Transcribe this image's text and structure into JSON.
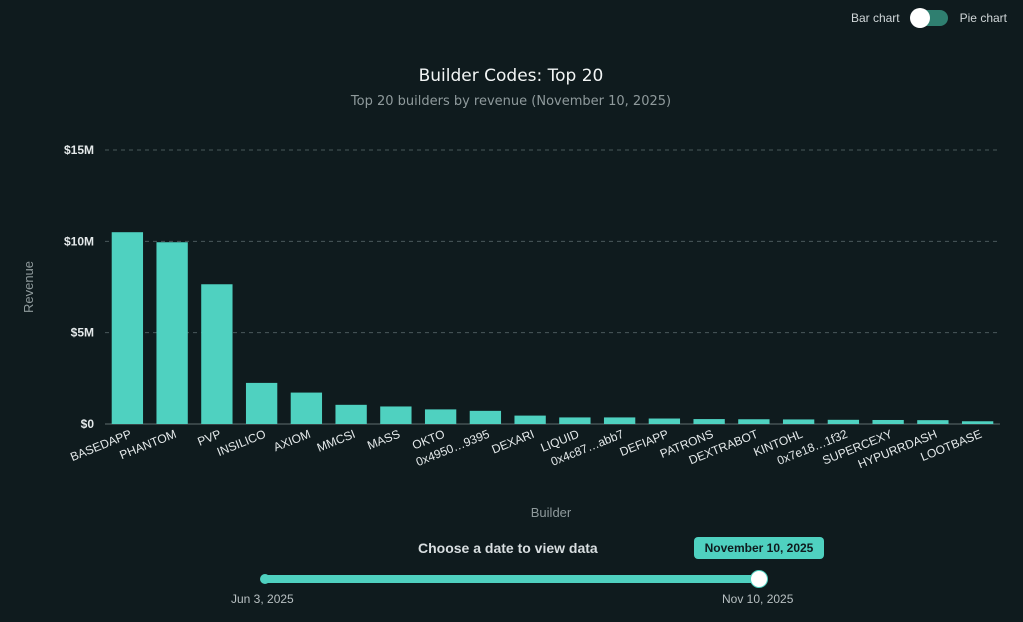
{
  "toggle": {
    "left_label": "Bar chart",
    "right_label": "Pie chart"
  },
  "chart_data": {
    "type": "bar",
    "title": "Builder Codes: Top 20",
    "subtitle": "Top 20 builders by revenue (November 10, 2025)",
    "xlabel": "Builder",
    "ylabel": "Revenue",
    "ylim": [
      0,
      15000000
    ],
    "yticks": [
      0,
      5000000,
      10000000,
      15000000
    ],
    "ytick_labels": [
      "$0",
      "$5M",
      "$10M",
      "$15M"
    ],
    "grid": true,
    "bar_color": "#4fd1c0",
    "categories": [
      "BASEDAPP",
      "PHANTOM",
      "PVP",
      "INSILICO",
      "AXIOM",
      "MMCSI",
      "MASS",
      "OKTO",
      "0x4950…9395",
      "DEXARI",
      "LIQUID",
      "0x4c87…abb7",
      "DEFIAPP",
      "PATRONS",
      "DEXTRABOT",
      "KINTOHL",
      "0x7e18…1f32",
      "SUPERCEXY",
      "HYPURRDASH",
      "LOOTBASE"
    ],
    "values": [
      10500000,
      9950000,
      7650000,
      2250000,
      1720000,
      1050000,
      960000,
      800000,
      720000,
      460000,
      360000,
      360000,
      300000,
      270000,
      260000,
      250000,
      230000,
      220000,
      210000,
      150000
    ]
  },
  "date_picker": {
    "label": "Choose a date to view data",
    "selected": "November 10, 2025",
    "min_label": "Jun 3, 2025",
    "max_label": "Nov 10, 2025",
    "position_fraction": 1.0
  },
  "colors": {
    "background": "#0f1b1e",
    "accent": "#4fd1c0",
    "grid": "#4a585b"
  }
}
